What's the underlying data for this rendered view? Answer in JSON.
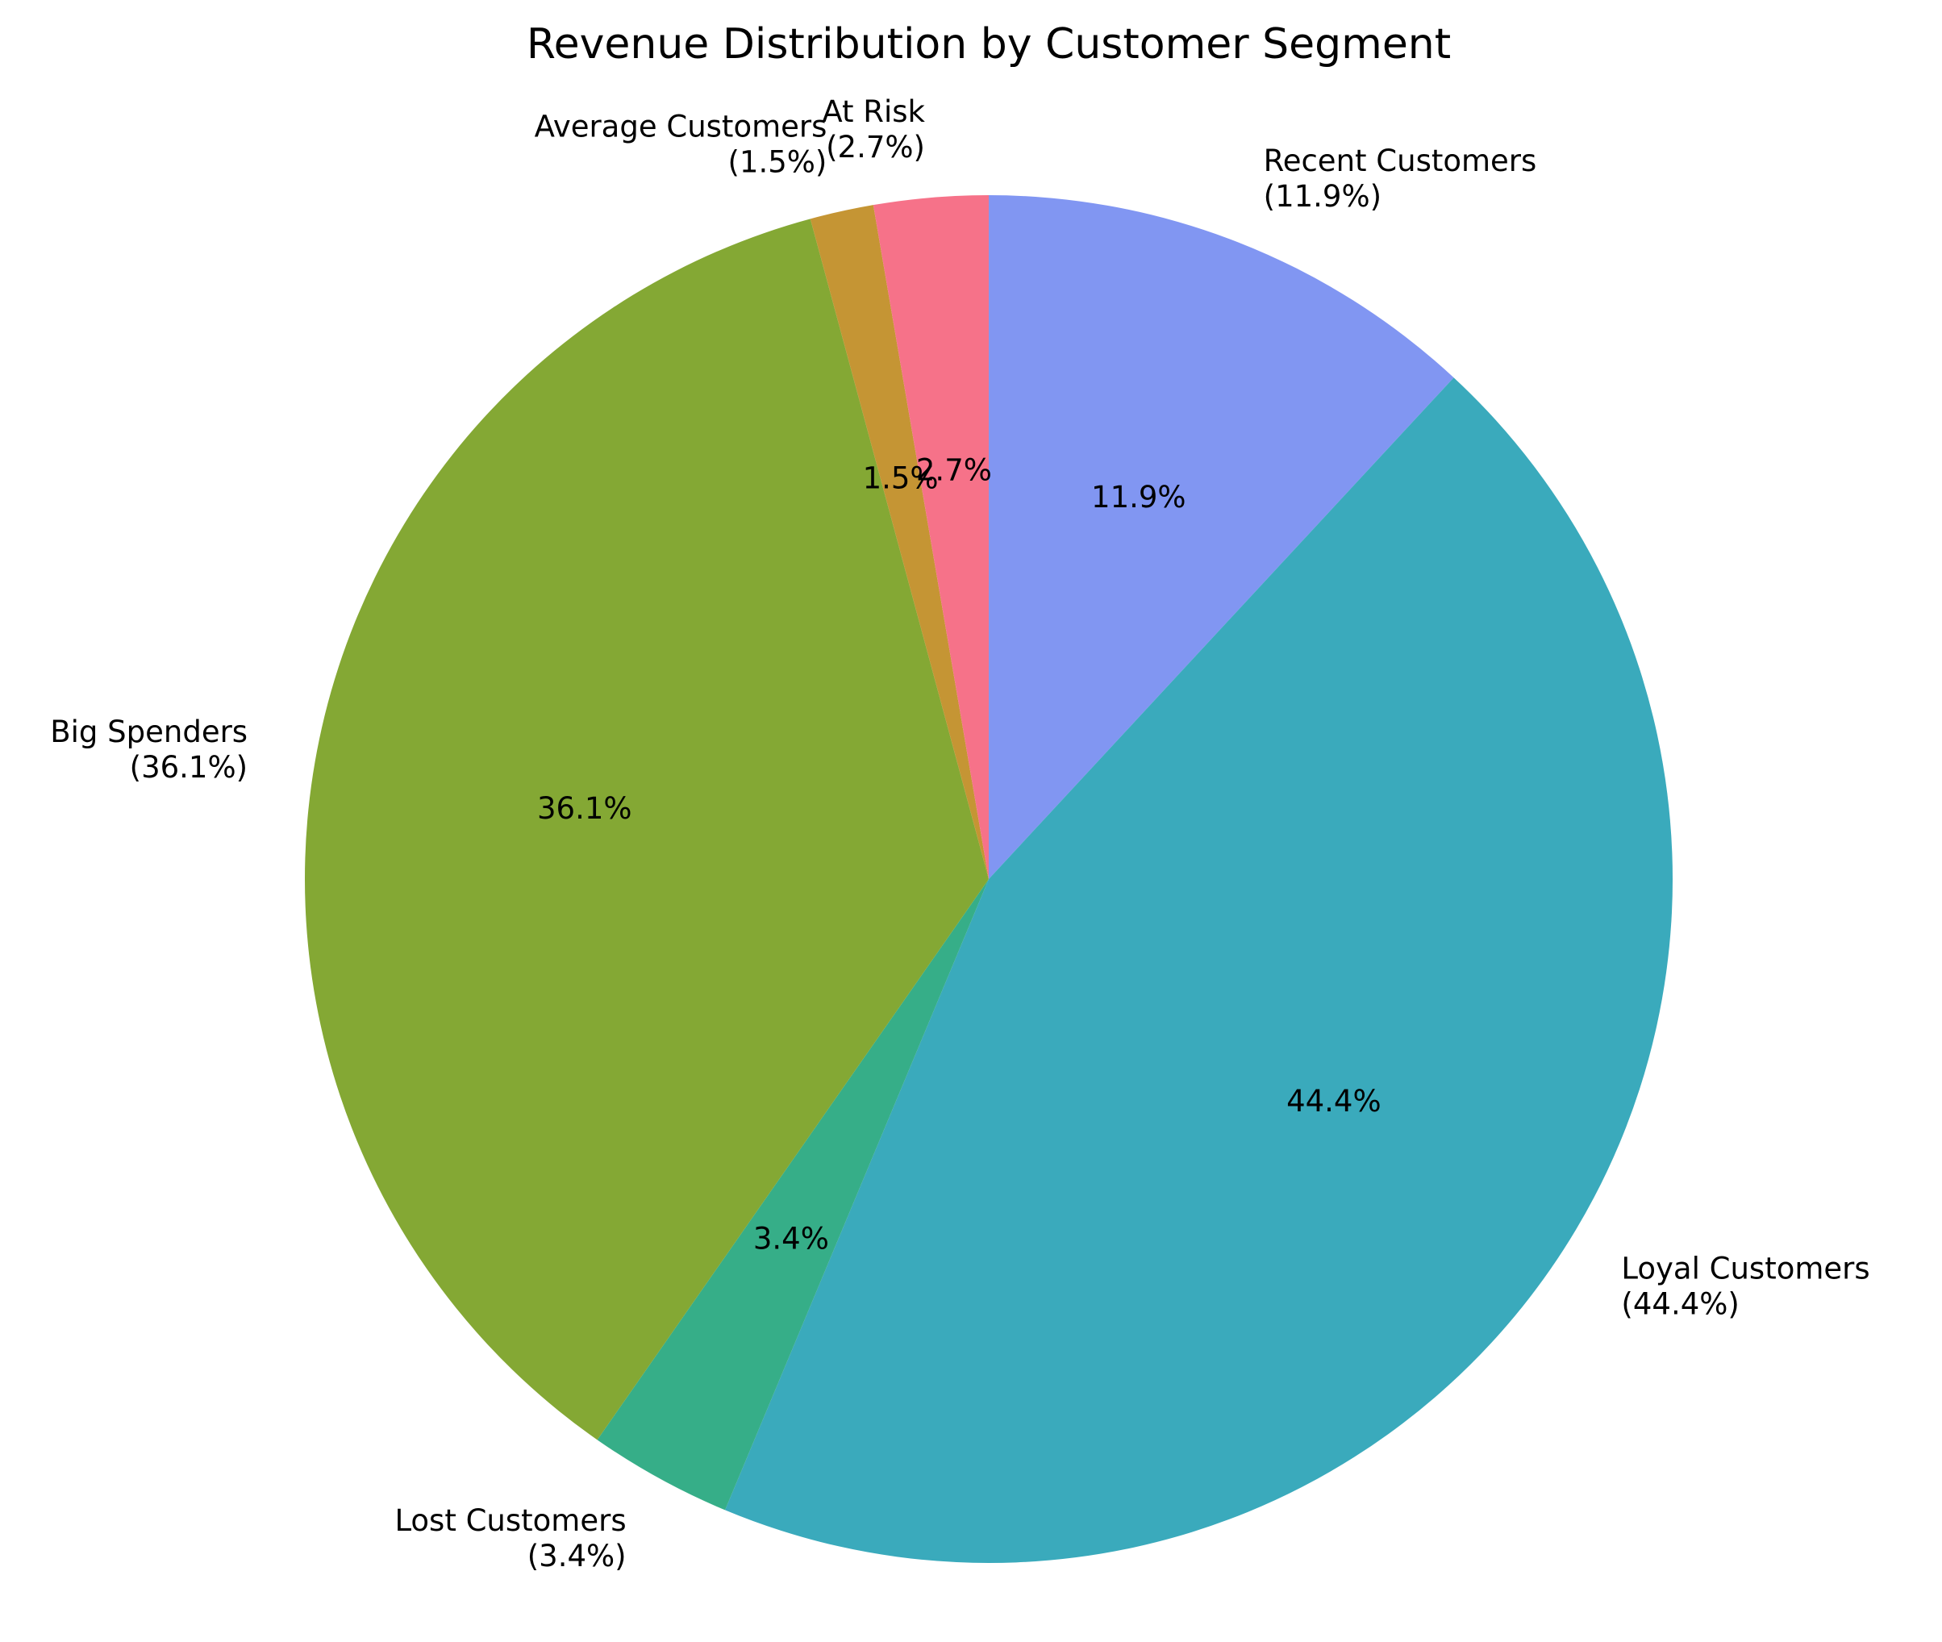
{
  "chart_data": {
    "type": "pie",
    "title": "Revenue Distribution by Customer Segment",
    "start_angle_deg": 90,
    "direction": "clockwise",
    "slices": [
      {
        "label": "Recent Customers",
        "value": 11.9,
        "outer_text": "Recent Customers",
        "outer_pct": "(11.9%)",
        "pct_text": "11.9%",
        "color": "#8196f2"
      },
      {
        "label": "Loyal Customers",
        "value": 44.4,
        "outer_text": "Loyal Customers",
        "outer_pct": "(44.4%)",
        "pct_text": "44.4%",
        "color": "#3aaabc"
      },
      {
        "label": "Lost Customers",
        "value": 3.4,
        "outer_text": "Lost Customers",
        "outer_pct": "(3.4%)",
        "pct_text": "3.4%",
        "color": "#36ae88"
      },
      {
        "label": "Big Spenders",
        "value": 36.1,
        "outer_text": "Big Spenders",
        "outer_pct": "(36.1%)",
        "pct_text": "36.1%",
        "color": "#84a834"
      },
      {
        "label": "Average Customers",
        "value": 1.5,
        "outer_text": "Average Customers",
        "outer_pct": "(1.5%)",
        "pct_text": "1.5%",
        "color": "#c59534"
      },
      {
        "label": "At Risk",
        "value": 2.7,
        "outer_text": "At Risk",
        "outer_pct": "(2.7%)",
        "pct_text": "2.7%",
        "color": "#f67289"
      }
    ]
  }
}
